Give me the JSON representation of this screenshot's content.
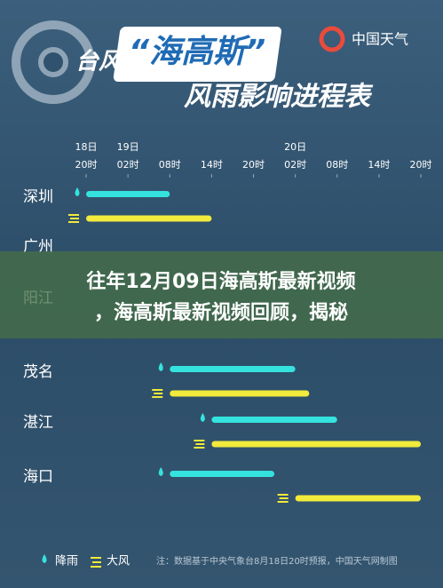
{
  "header": {
    "prefix": "台风",
    "name": "“海高斯”",
    "subtitle": "风雨影响进程表",
    "logo": "中国天气"
  },
  "timeline": {
    "xlim": [
      0,
      48
    ],
    "tick_dates": [
      {
        "value": 0,
        "label": "18日"
      },
      {
        "value": 6,
        "label": "19日"
      },
      {
        "value": 30,
        "label": "20日"
      }
    ],
    "xticks": [
      {
        "value": 0,
        "label": "20时"
      },
      {
        "value": 6,
        "label": "02时"
      },
      {
        "value": 12,
        "label": "08时"
      },
      {
        "value": 18,
        "label": "14时"
      },
      {
        "value": 24,
        "label": "20时"
      },
      {
        "value": 30,
        "label": "02时"
      },
      {
        "value": 36,
        "label": "08时"
      },
      {
        "value": 42,
        "label": "14时"
      },
      {
        "value": 48,
        "label": "20时"
      }
    ],
    "rain_color": "#35e3de",
    "wind_color": "#f2ea3c",
    "rows": [
      {
        "name": "深圳",
        "rain": [
          0,
          12
        ],
        "wind": [
          0,
          18
        ]
      },
      {
        "name": "广州"
      },
      {
        "name": "阳江"
      },
      {
        "name": "茂名",
        "rain": [
          12,
          30
        ],
        "wind": [
          12,
          32
        ]
      },
      {
        "name": "湛江",
        "rain": [
          18,
          36
        ],
        "wind": [
          18,
          48
        ]
      },
      {
        "name": "海口",
        "rain": [
          12,
          27
        ],
        "wind": [
          30,
          48
        ]
      }
    ]
  },
  "legend": {
    "rain": "降雨",
    "wind": "大风"
  },
  "note": "注：数据基于中央气象台8月18日20时预报，中国天气网制图",
  "banner": {
    "line1": "往年12月09日海高斯最新视频",
    "line2": "，海高斯最新视频回顾，揭秘"
  }
}
